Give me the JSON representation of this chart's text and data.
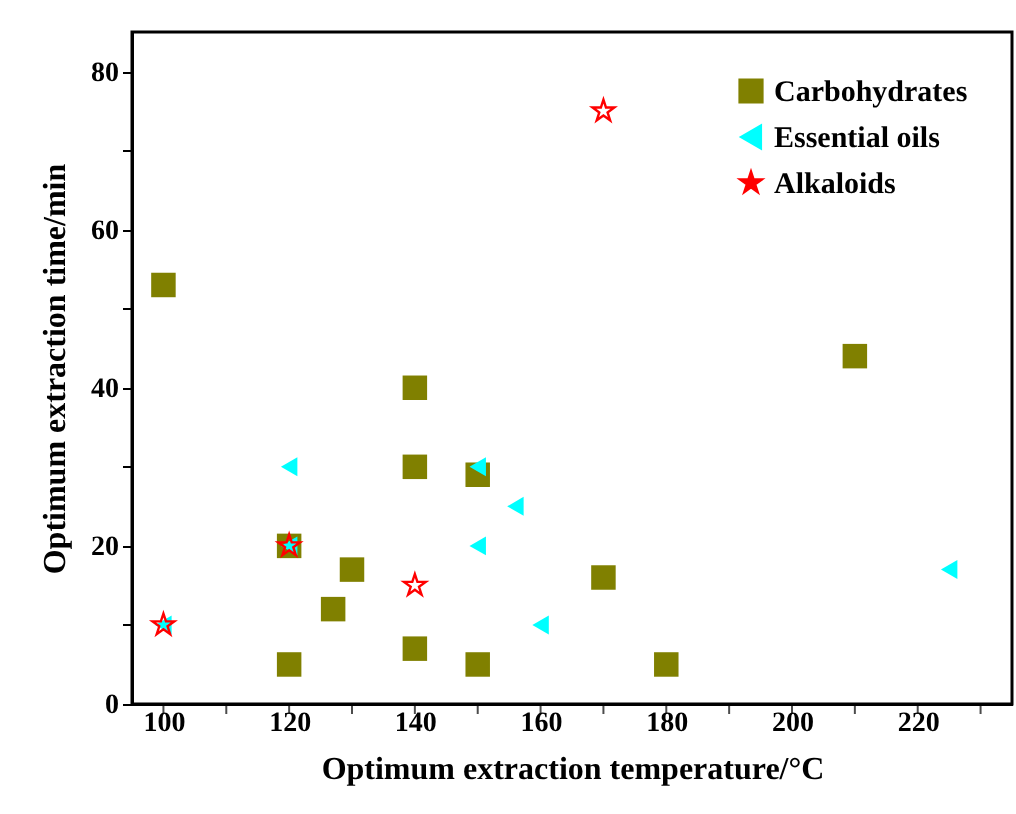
{
  "chart_data": {
    "type": "scatter",
    "xlabel": "Optimum extraction temperature/°C",
    "ylabel": "Optimum extraction time/min",
    "xlim": [
      95,
      235
    ],
    "ylim": [
      0,
      85
    ],
    "xticks": [
      100,
      {
        "value": 110,
        "label": null
      },
      120,
      {
        "value": 130,
        "label": null
      },
      140,
      {
        "value": 150,
        "label": null
      },
      160,
      {
        "value": 170,
        "label": null
      },
      180,
      {
        "value": 190,
        "label": null
      },
      200,
      {
        "value": 210,
        "label": null
      },
      220,
      {
        "value": 230,
        "label": null
      }
    ],
    "yticks": [
      0,
      {
        "value": 10,
        "label": null
      },
      20,
      {
        "value": 30,
        "label": null
      },
      40,
      {
        "value": 50,
        "label": null
      },
      60,
      {
        "value": 70,
        "label": null
      },
      80
    ],
    "grid": false,
    "legend": "top right",
    "series": [
      {
        "name": "Carbohydrates",
        "color": "#808000",
        "marker": "square",
        "x": [
          100,
          120,
          120,
          127,
          130,
          140,
          140,
          140,
          150,
          150,
          170,
          180,
          210
        ],
        "values": [
          53,
          5,
          20,
          12,
          17,
          40,
          30,
          7,
          29,
          5,
          16,
          5,
          44
        ]
      },
      {
        "name": "Essential oils",
        "color": "#00ffff",
        "marker": "triangle",
        "x": [
          100,
          120,
          120,
          150,
          150,
          156,
          160,
          225
        ],
        "values": [
          10,
          30,
          20,
          30,
          20,
          25,
          10,
          17
        ]
      },
      {
        "name": "Alkaloids",
        "color": "#ff0000",
        "marker": "star",
        "x": [
          100,
          120,
          140,
          170
        ],
        "values": [
          10,
          20,
          15,
          75
        ]
      }
    ]
  }
}
